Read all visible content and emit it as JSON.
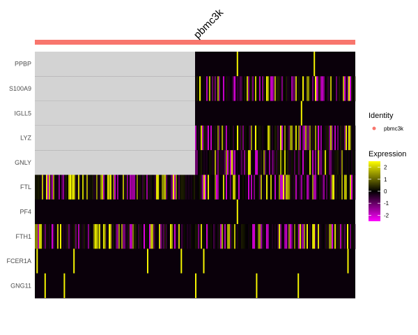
{
  "chart_data": {
    "type": "heatmap",
    "group": {
      "name": "pbmc3k",
      "color": "#F8766D"
    },
    "genes": [
      "PPBP",
      "S100A9",
      "IGLL5",
      "LYZ",
      "GNLY",
      "FTL",
      "PF4",
      "FTH1",
      "FCER1A",
      "GNG11"
    ],
    "legend": {
      "identity_title": "Identity",
      "identity_entries": [
        "pbmc3k"
      ],
      "expression_title": "Expression",
      "expression_ticks": [
        2,
        1,
        0,
        -1,
        -2
      ],
      "expression_range": [
        -2.5,
        2.5
      ],
      "colors": {
        "low": "#FF00FF",
        "mid": "#000000",
        "high": "#FFFF00"
      }
    },
    "cell_count": 230,
    "missing_fraction": 0.5,
    "missing_color": "#D3D3D3",
    "genes_missing_in_first_half": [
      "PPBP",
      "S100A9",
      "IGLL5",
      "LYZ",
      "GNLY"
    ],
    "sparse_highlights": {
      "PPBP": [
        0.63,
        0.87
      ],
      "IGLL5": [
        0.83
      ],
      "PF4": [
        0.63
      ],
      "FCER1A": [
        0.005,
        0.12,
        0.35,
        0.455,
        0.525,
        0.975
      ],
      "GNG11": [
        0.03,
        0.09,
        0.5,
        0.69,
        0.82
      ]
    }
  }
}
